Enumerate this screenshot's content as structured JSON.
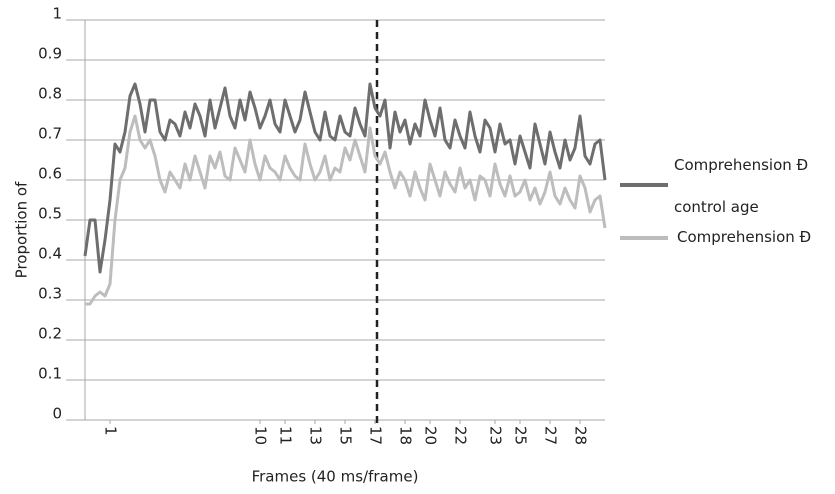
{
  "chart_data": {
    "type": "line",
    "y_label": "Proportion of",
    "x_label": "Frames (40 ms/frame)",
    "ylim": [
      0,
      1
    ],
    "yticks": [
      0,
      0.1,
      0.2,
      0.3,
      0.4,
      0.5,
      0.6,
      0.7,
      0.8,
      0.9,
      1
    ],
    "xlim": [
      0,
      104
    ],
    "xticks": [
      {
        "value": 5,
        "label": "1"
      },
      {
        "value": 35,
        "label": "10"
      },
      {
        "value": 40,
        "label": "11"
      },
      {
        "value": 46,
        "label": "13"
      },
      {
        "value": 52,
        "label": "15"
      },
      {
        "value": 58,
        "label": "17"
      },
      {
        "value": 64,
        "label": "18"
      },
      {
        "value": 69,
        "label": "20"
      },
      {
        "value": 75,
        "label": "22"
      },
      {
        "value": 82,
        "label": "23"
      },
      {
        "value": 87,
        "label": "25"
      },
      {
        "value": 93,
        "label": "27"
      },
      {
        "value": 99,
        "label": "28"
      }
    ],
    "reference_line_x": 58.4,
    "grid": true,
    "x": [
      0,
      1,
      2,
      3,
      4,
      5,
      6,
      7,
      8,
      9,
      10,
      11,
      12,
      13,
      14,
      15,
      16,
      17,
      18,
      19,
      20,
      21,
      22,
      23,
      24,
      25,
      26,
      27,
      28,
      29,
      30,
      31,
      32,
      33,
      34,
      35,
      36,
      37,
      38,
      39,
      40,
      41,
      42,
      43,
      44,
      45,
      46,
      47,
      48,
      49,
      50,
      51,
      52,
      53,
      54,
      55,
      56,
      57,
      58,
      59,
      60,
      61,
      62,
      63,
      64,
      65,
      66,
      67,
      68,
      69,
      70,
      71,
      72,
      73,
      74,
      75,
      76,
      77,
      78,
      79,
      80,
      81,
      82,
      83,
      84,
      85,
      86,
      87,
      88,
      89,
      90,
      91,
      92,
      93,
      94,
      95,
      96,
      97,
      98,
      99,
      100,
      101,
      102,
      103,
      104
    ],
    "series": [
      {
        "name": "Comprehension Ð control age",
        "color": "#6e6e6e",
        "values": [
          0.41,
          0.5,
          0.5,
          0.37,
          0.45,
          0.55,
          0.69,
          0.67,
          0.72,
          0.81,
          0.84,
          0.79,
          0.72,
          0.8,
          0.8,
          0.72,
          0.7,
          0.75,
          0.74,
          0.71,
          0.77,
          0.73,
          0.79,
          0.76,
          0.71,
          0.8,
          0.73,
          0.78,
          0.83,
          0.76,
          0.73,
          0.8,
          0.75,
          0.82,
          0.78,
          0.73,
          0.76,
          0.8,
          0.74,
          0.72,
          0.8,
          0.76,
          0.72,
          0.75,
          0.82,
          0.77,
          0.72,
          0.7,
          0.77,
          0.71,
          0.7,
          0.76,
          0.72,
          0.71,
          0.78,
          0.74,
          0.71,
          0.84,
          0.78,
          0.76,
          0.8,
          0.68,
          0.77,
          0.72,
          0.75,
          0.69,
          0.74,
          0.71,
          0.8,
          0.75,
          0.71,
          0.78,
          0.7,
          0.68,
          0.75,
          0.71,
          0.68,
          0.77,
          0.71,
          0.67,
          0.75,
          0.73,
          0.67,
          0.74,
          0.69,
          0.7,
          0.64,
          0.71,
          0.67,
          0.63,
          0.74,
          0.69,
          0.64,
          0.72,
          0.67,
          0.63,
          0.7,
          0.65,
          0.68,
          0.76,
          0.66,
          0.64,
          0.69,
          0.7,
          0.6
        ]
      },
      {
        "name": "Comprehension Ð",
        "color": "#bdbdbd",
        "values": [
          0.29,
          0.29,
          0.31,
          0.32,
          0.31,
          0.34,
          0.5,
          0.6,
          0.63,
          0.72,
          0.76,
          0.7,
          0.68,
          0.7,
          0.66,
          0.6,
          0.57,
          0.62,
          0.6,
          0.58,
          0.64,
          0.6,
          0.66,
          0.62,
          0.58,
          0.66,
          0.63,
          0.67,
          0.61,
          0.6,
          0.68,
          0.65,
          0.62,
          0.7,
          0.64,
          0.6,
          0.66,
          0.63,
          0.62,
          0.6,
          0.66,
          0.63,
          0.61,
          0.6,
          0.69,
          0.64,
          0.6,
          0.62,
          0.66,
          0.6,
          0.63,
          0.62,
          0.68,
          0.65,
          0.7,
          0.66,
          0.62,
          0.73,
          0.66,
          0.64,
          0.67,
          0.62,
          0.58,
          0.62,
          0.6,
          0.56,
          0.62,
          0.58,
          0.55,
          0.64,
          0.6,
          0.56,
          0.62,
          0.59,
          0.57,
          0.63,
          0.58,
          0.6,
          0.55,
          0.61,
          0.6,
          0.56,
          0.64,
          0.59,
          0.56,
          0.61,
          0.56,
          0.57,
          0.6,
          0.55,
          0.58,
          0.54,
          0.57,
          0.62,
          0.56,
          0.54,
          0.58,
          0.55,
          0.53,
          0.61,
          0.58,
          0.52,
          0.55,
          0.56,
          0.48
        ]
      }
    ]
  }
}
